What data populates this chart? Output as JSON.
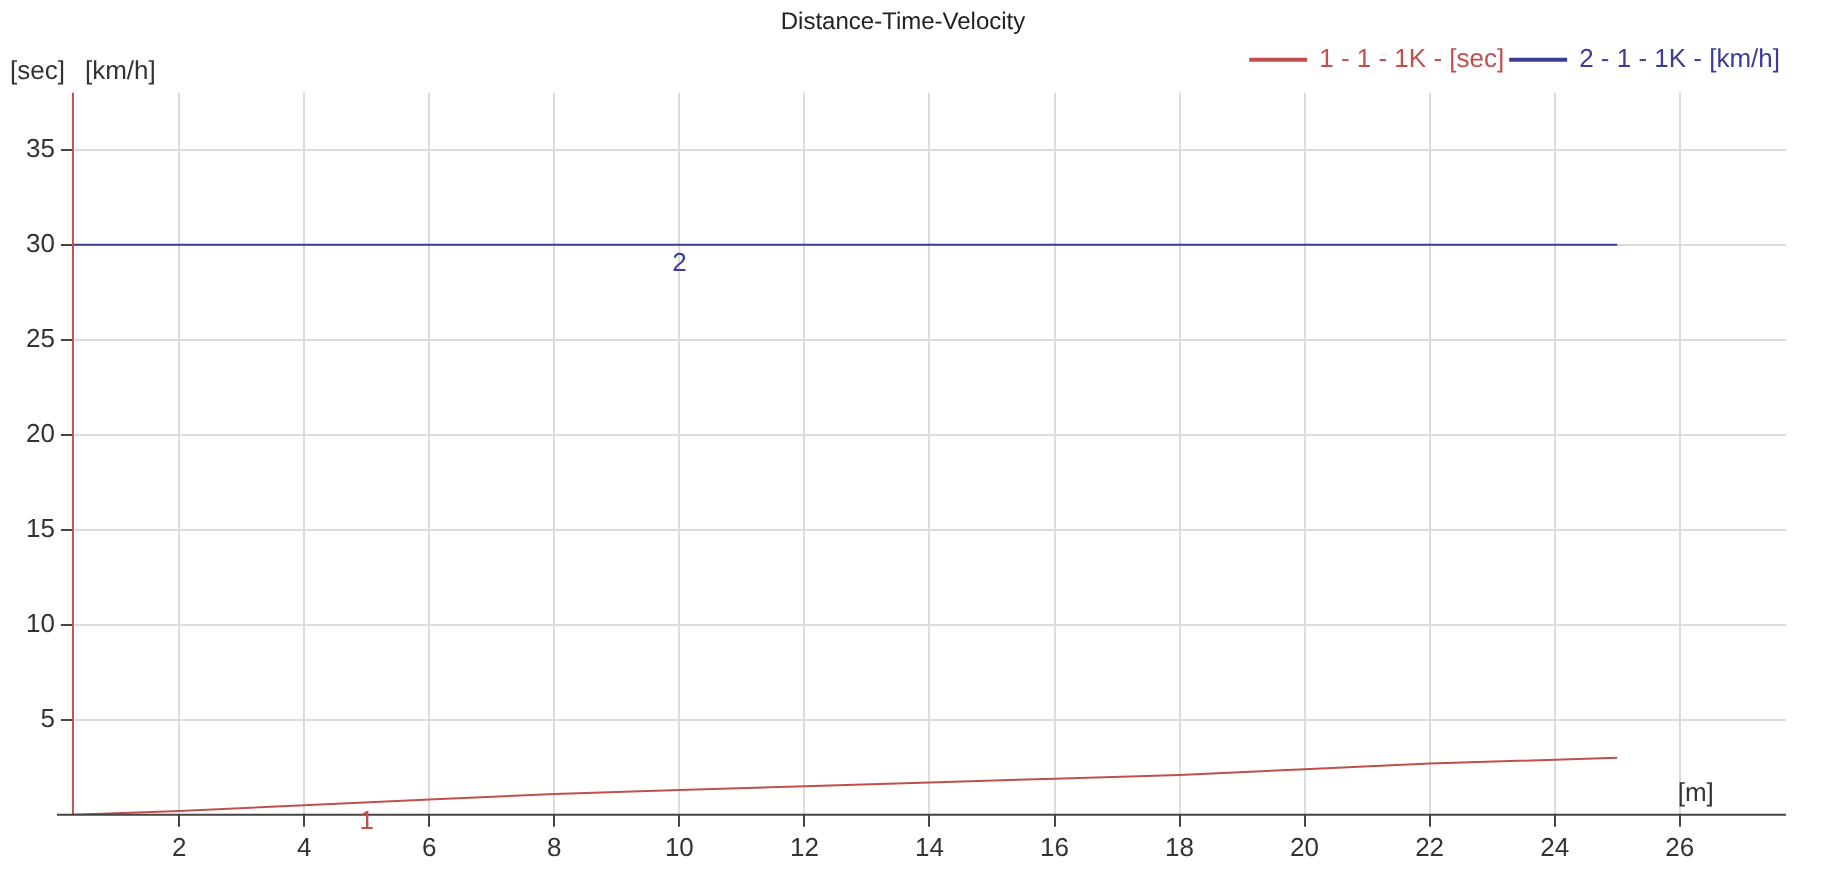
{
  "chart_data": {
    "type": "line",
    "title": "Distance-Time-Velocity",
    "xlabel": "[m]",
    "ylabel": "[sec]",
    "y2label": "[km/h]",
    "xlim": [
      0.3,
      27.7
    ],
    "xticks": [
      2,
      4,
      6,
      8,
      10,
      12,
      14,
      16,
      18,
      20,
      22,
      24,
      26
    ],
    "ylim": [
      0,
      38
    ],
    "yticks": [
      5,
      10,
      15,
      20,
      25,
      30,
      35
    ],
    "grid": true,
    "legend": "top right",
    "marker": "none",
    "line_style": "solid",
    "series": [
      {
        "name": "1 - 1 - 1K - [sec]",
        "color": "#c0504d",
        "x": [
          0.3,
          2,
          4,
          6,
          8,
          10,
          12,
          14,
          16,
          18,
          20,
          22,
          25
        ],
        "values": [
          0,
          0.2,
          0.5,
          0.8,
          1.1,
          1.3,
          1.5,
          1.7,
          1.9,
          2.1,
          2.4,
          2.7,
          3.0
        ]
      },
      {
        "name": "2 - 1 - 1K - [km/h]",
        "color": "#3c3c96",
        "x": [
          0.3,
          25
        ],
        "values": [
          30,
          30
        ]
      }
    ],
    "annotations": [
      {
        "text": "1",
        "x": 5,
        "y": 0.65
      },
      {
        "text": "2",
        "x": 10,
        "y": 30
      }
    ]
  }
}
